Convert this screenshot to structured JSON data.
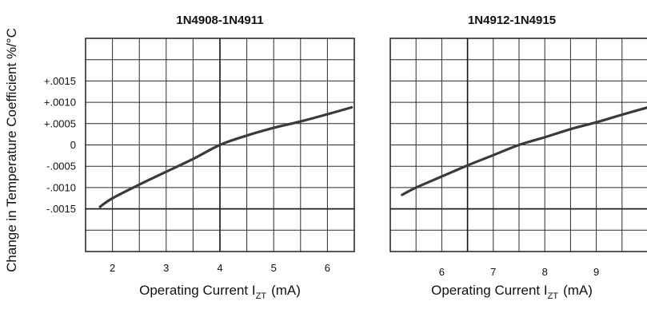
{
  "chart_data": [
    {
      "type": "line",
      "title": "1N4908-1N4911",
      "xlabel": "Operating Current I",
      "xlabel_sub": "ZT",
      "xlabel_unit": "(mA)",
      "ylabel": "Change in Temperature Coefficient %/°C",
      "xlim": [
        1.5,
        6.5
      ],
      "ylim": [
        -0.0025,
        0.0025
      ],
      "x_ticks": [
        2,
        3,
        4,
        5,
        6
      ],
      "x_tick_labels": [
        "2",
        "3",
        "4",
        "5",
        "6"
      ],
      "y_ticks": [
        0.0015,
        0.001,
        0.0005,
        0,
        -0.0005,
        -0.001,
        -0.0015
      ],
      "y_tick_labels": [
        "+.0015",
        "+.0010",
        "+.0005",
        "0",
        "-.0005",
        "-.0010",
        "-.0015"
      ],
      "grid": true,
      "series": [
        {
          "x": [
            1.77,
            2.0,
            2.5,
            3.0,
            3.5,
            4.0,
            4.5,
            5.0,
            5.5,
            6.0,
            6.45
          ],
          "y": [
            -0.00145,
            -0.00125,
            -0.00093,
            -0.00063,
            -0.00033,
            0.0,
            0.00022,
            0.0004,
            0.00055,
            0.00072,
            0.00088
          ]
        }
      ]
    },
    {
      "type": "line",
      "title": "1N4912-1N4915",
      "xlabel": "Operating Current I",
      "xlabel_sub": "ZT",
      "xlabel_unit": "(mA)",
      "xlim": [
        5,
        10
      ],
      "ylim": [
        -0.0025,
        0.0025
      ],
      "x_ticks": [
        6,
        7,
        8,
        9
      ],
      "x_tick_labels": [
        "6",
        "7",
        "8",
        "9"
      ],
      "y_ticks": [
        0.0015,
        0.001,
        0.0005,
        0,
        -0.0005,
        -0.001,
        -0.0015
      ],
      "grid": true,
      "series": [
        {
          "x": [
            5.23,
            5.5,
            6.0,
            6.5,
            7.0,
            7.5,
            8.0,
            8.5,
            9.0,
            9.5,
            10.0
          ],
          "y": [
            -0.00117,
            -0.001,
            -0.00074,
            -0.00048,
            -0.00024,
            0.0,
            0.00018,
            0.00037,
            0.00053,
            0.00071,
            0.00088
          ]
        }
      ]
    }
  ]
}
